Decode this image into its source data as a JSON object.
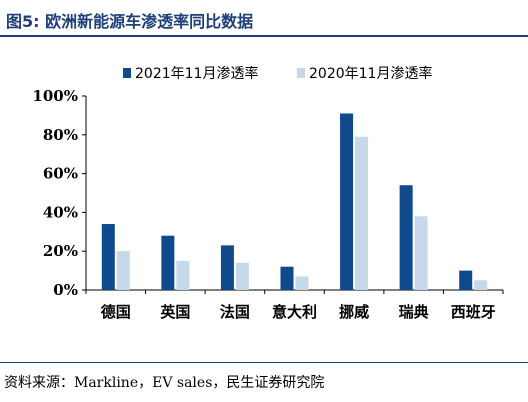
{
  "title": "图5: 欧洲新能源车渗透率同比数据",
  "source": "资料来源：Markline，EV sales，民生证券研究院",
  "colors": {
    "title": "#1f3f7a",
    "series_2021": "#0e4a8c",
    "series_2020": "#c6d9ea"
  },
  "chart_data": {
    "type": "bar",
    "categories": [
      "德国",
      "英国",
      "法国",
      "意大利",
      "挪威",
      "瑞典",
      "西班牙"
    ],
    "series": [
      {
        "name": "2021年11月渗透率",
        "values": [
          34,
          28,
          23,
          12,
          91,
          54,
          10
        ]
      },
      {
        "name": "2020年11月渗透率",
        "values": [
          20,
          15,
          14,
          7,
          79,
          38,
          5
        ]
      }
    ],
    "yticks": [
      "0%",
      "20%",
      "40%",
      "60%",
      "80%",
      "100%"
    ],
    "ylim": [
      0,
      100
    ],
    "legend_position": "top",
    "grid": false
  }
}
